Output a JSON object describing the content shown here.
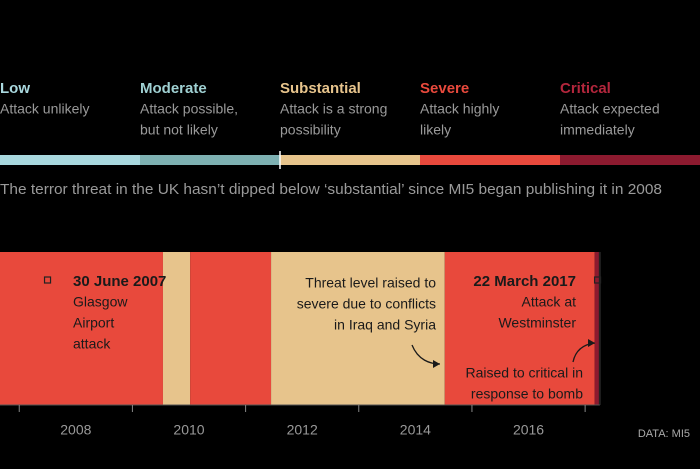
{
  "chart_data": {
    "type": "timeline",
    "subtitle": "The terror threat in the UK hasn’t dipped below ‘substantial’ since MI5 began publishing it in 2008",
    "levels": [
      {
        "name": "Low",
        "description": [
          "Attack unlikely"
        ],
        "color": "#a9d8de",
        "text_color": "#a9d8de"
      },
      {
        "name": "Moderate",
        "description": [
          "Attack possible,",
          "but not likely"
        ],
        "color": "#7eb1b2",
        "text_color": "#9fd0d2"
      },
      {
        "name": "Substantial",
        "description": [
          "Attack is a strong",
          "possibility"
        ],
        "color": "#e7c48c",
        "text_color": "#e7c48c"
      },
      {
        "name": "Severe",
        "description": [
          "Attack highly",
          "likely"
        ],
        "color": "#e8493c",
        "text_color": "#e8493c"
      },
      {
        "name": "Critical",
        "description": [
          "Attack expected",
          "immediately"
        ],
        "color": "#8c1a2f",
        "text_color": "#b3263c"
      }
    ],
    "bands": [
      {
        "start": 2006.66,
        "end": 2009.54,
        "level": 3
      },
      {
        "start": 2009.54,
        "end": 2010.02,
        "level": 2
      },
      {
        "start": 2010.02,
        "end": 2011.45,
        "level": 3
      },
      {
        "start": 2011.45,
        "end": 2014.52,
        "level": 2
      },
      {
        "start": 2014.52,
        "end": 2017.17,
        "level": 3
      },
      {
        "start": 2017.17,
        "end": 2017.26,
        "level": 4
      }
    ],
    "xlim": [
      2006.66,
      2019.03
    ],
    "xticks": [
      2008,
      2010,
      2012,
      2014,
      2016
    ],
    "minor_ticks": [
      2007,
      2009,
      2011,
      2013,
      2015,
      2017
    ],
    "annotations": [
      {
        "x": 2007.5,
        "title": "30 June 2007",
        "lines": [
          "Glasgow",
          "Airport",
          "attack"
        ],
        "align": "start"
      },
      {
        "x": 2014.52,
        "title": null,
        "lines": [
          "Threat level raised to",
          "severe due to conflicts",
          "in Iraq and Syria"
        ],
        "align": "end"
      },
      {
        "x": 2017.22,
        "title": "22 March 2017",
        "lines": [
          "Attack at",
          "Westminster"
        ],
        "align": "end"
      },
      {
        "x": 2017.26,
        "title": null,
        "lines": [
          "Raised to critical in",
          "response to bomb"
        ],
        "align": "end"
      }
    ],
    "source": "DATA: MI5"
  }
}
